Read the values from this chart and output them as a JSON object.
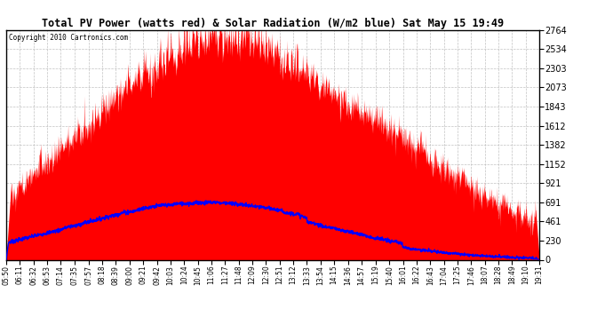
{
  "title": "Total PV Power (watts red) & Solar Radiation (W/m2 blue) Sat May 15 19:49",
  "copyright_text": "Copyright 2010 Cartronics.com",
  "background_color": "#ffffff",
  "plot_bg_color": "#ffffff",
  "grid_color": "#bbbbbb",
  "pv_color": "red",
  "solar_color": "blue",
  "y_max": 2764.0,
  "y_min": 0.0,
  "y_ticks": [
    0.0,
    230.3,
    460.7,
    691.0,
    921.3,
    1151.7,
    1382.0,
    1612.3,
    1842.7,
    2073.0,
    2303.3,
    2533.7,
    2764.0
  ],
  "x_labels": [
    "05:50",
    "06:11",
    "06:32",
    "06:53",
    "07:14",
    "07:35",
    "07:57",
    "08:18",
    "08:39",
    "09:00",
    "09:21",
    "09:42",
    "10:03",
    "10:24",
    "10:45",
    "11:06",
    "11:27",
    "11:48",
    "12:09",
    "12:30",
    "12:51",
    "13:12",
    "13:33",
    "13:54",
    "14:15",
    "14:36",
    "14:57",
    "15:19",
    "15:40",
    "16:01",
    "16:22",
    "16:43",
    "17:04",
    "17:25",
    "17:46",
    "18:07",
    "18:28",
    "18:49",
    "19:10",
    "19:31"
  ]
}
